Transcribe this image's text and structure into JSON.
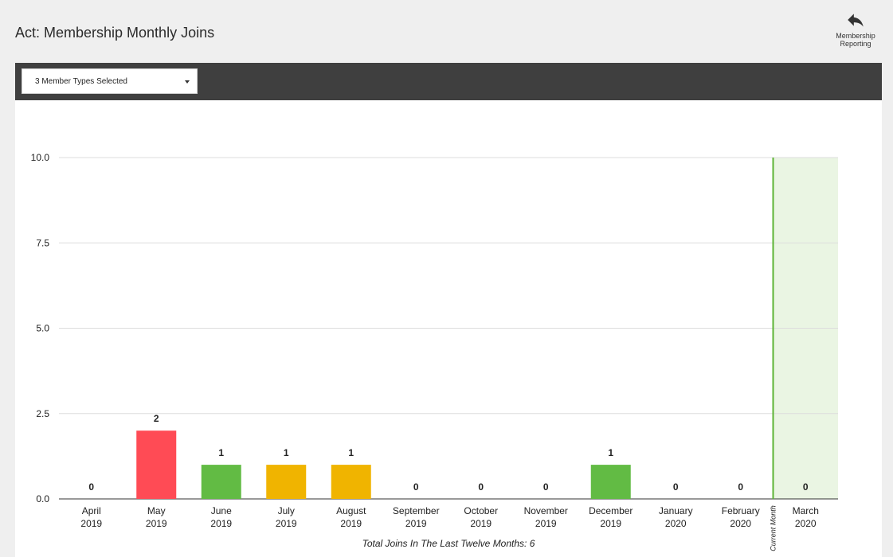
{
  "page": {
    "title": "Act: Membership Monthly Joins",
    "back_link_label_line1": "Membership",
    "back_link_label_line2": "Reporting"
  },
  "filters": {
    "member_types_label": "3 Member Types Selected"
  },
  "colors": {
    "red": "#ff4b55",
    "green": "#62bb44",
    "amber": "#f0b400",
    "current_month_line": "#5cb335",
    "current_month_fill": "#eaf5e3",
    "grid": "#dddddd",
    "toolbar": "#3f3f3f"
  },
  "chart_data": {
    "type": "bar",
    "categories": [
      [
        "April",
        "2019"
      ],
      [
        "May",
        "2019"
      ],
      [
        "June",
        "2019"
      ],
      [
        "July",
        "2019"
      ],
      [
        "August",
        "2019"
      ],
      [
        "September",
        "2019"
      ],
      [
        "October",
        "2019"
      ],
      [
        "November",
        "2019"
      ],
      [
        "December",
        "2019"
      ],
      [
        "January",
        "2020"
      ],
      [
        "February",
        "2020"
      ],
      [
        "March",
        "2020"
      ]
    ],
    "values": [
      0,
      2,
      1,
      1,
      1,
      0,
      0,
      0,
      1,
      0,
      0,
      0
    ],
    "bar_colors": [
      "green",
      "red",
      "green",
      "amber",
      "amber",
      "green",
      "green",
      "green",
      "green",
      "green",
      "green",
      "green"
    ],
    "y_ticks": [
      "0.0",
      "2.5",
      "5.0",
      "7.5",
      "10.0"
    ],
    "ylim": [
      0,
      10
    ],
    "grid": true,
    "current_month_index": 11,
    "current_month_label": "Current Month",
    "footer": "Total Joins In The Last Twelve Months: 6"
  }
}
